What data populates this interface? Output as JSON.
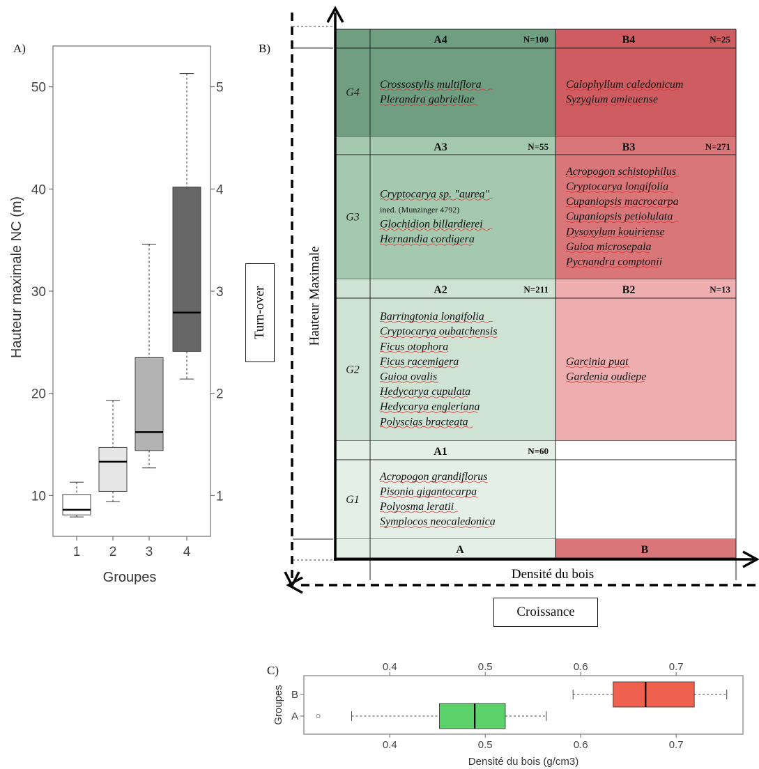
{
  "panels": {
    "a_letter": "A)",
    "b_letter": "B)",
    "c_letter": "C)"
  },
  "chart_data": [
    {
      "type": "boxplot",
      "panel": "A",
      "xlabel": "Groupes",
      "ylabel": "Hauteur maximale NC (m)",
      "categories": [
        "1",
        "2",
        "3",
        "4"
      ],
      "ylim": [
        6,
        54
      ],
      "yticks": [
        10,
        20,
        30,
        40,
        50
      ],
      "boxes": [
        {
          "group": "1",
          "whisker_low": 7.9,
          "q1": 8.1,
          "median": 8.6,
          "q3": 10.1,
          "whisker_high": 11.3,
          "fill": "#ffffff"
        },
        {
          "group": "2",
          "whisker_low": 9.4,
          "q1": 10.4,
          "median": 13.3,
          "q3": 14.7,
          "whisker_high": 19.3,
          "fill": "#e6e6e6"
        },
        {
          "group": "3",
          "whisker_low": 12.7,
          "q1": 14.4,
          "median": 16.2,
          "q3": 23.5,
          "whisker_high": 34.6,
          "fill": "#b3b3b3"
        },
        {
          "group": "4",
          "whisker_low": 21.4,
          "q1": 24.1,
          "median": 27.9,
          "q3": 40.2,
          "whisker_high": 51.3,
          "fill": "#666666"
        }
      ]
    },
    {
      "type": "table",
      "panel": "B",
      "x_axis_label": "Densité du bois",
      "y_axis_label": "Hauteur Maximale",
      "outer_x_label": "Croissance",
      "outer_y_label": "Turn-over",
      "columns": [
        "A",
        "B"
      ],
      "rows": [
        {
          "group": "G4",
          "cells": [
            {
              "id": "A4",
              "n": "N=100",
              "color": "#6f9f80",
              "species": [
                "Crossostylis multiflora",
                "Plerandra gabriellae"
              ]
            },
            {
              "id": "B4",
              "n": "N=25",
              "color": "#cf5c60",
              "species": [
                "Calophyllum caledonicum",
                "Syzygium amieuense"
              ]
            }
          ]
        },
        {
          "group": "G3",
          "cells": [
            {
              "id": "A3",
              "n": "N=55",
              "color": "#a4c9af",
              "species": [
                "Cryptocarya sp. \"aurea\"",
                "Glochidion billardierei",
                "Hernandia cordigera"
              ],
              "note": "ined. (Munzinger 4792)"
            },
            {
              "id": "B3",
              "n": "N=271",
              "color": "#d9767a",
              "species": [
                "Acropogon schistophilus",
                "Cryptocarya longifolia",
                "Cupaniopsis macrocarpa",
                "Cupaniopsis petiolulata",
                "Dysoxylum kouiriense",
                "Guioa microsepala",
                "Pycnandra comptonii"
              ]
            }
          ]
        },
        {
          "group": "G2",
          "cells": [
            {
              "id": "A2",
              "n": "N=211",
              "color": "#cfe3d5",
              "species": [
                "Barringtonia longifolia",
                "Cryptocarya oubatchensis",
                "Ficus otophora",
                "Ficus racemigera",
                "Guioa ovalis",
                "Hedycarya cupulata",
                "Hedycarya engleriana",
                "Polyscias bracteata"
              ]
            },
            {
              "id": "B2",
              "n": "N=13",
              "color": "#eeaeb0",
              "species": [
                "Garcinia puat",
                "Gardenia oudiepe"
              ]
            }
          ]
        },
        {
          "group": "G1",
          "cells": [
            {
              "id": "A1",
              "n": "N=60",
              "color": "#e4efe7",
              "species": [
                "Acropogon grandiflorus",
                "Pisonia gigantocarpa",
                "Polyosma leratii",
                "Symplocos neocaledonica"
              ]
            },
            {
              "id": "",
              "n": "",
              "color": "#ffffff",
              "species": []
            }
          ]
        }
      ],
      "column_header_colors": {
        "A": "#e4efe7",
        "B": "#d9767a"
      }
    },
    {
      "type": "boxplot",
      "panel": "C",
      "orientation": "horizontal",
      "xlabel": "Densité du bois (g/cm3)",
      "ylabel": "Groupes",
      "categories": [
        "A",
        "B"
      ],
      "xlim": [
        0.31,
        0.77
      ],
      "xticks": [
        0.4,
        0.5,
        0.6,
        0.7
      ],
      "boxes": [
        {
          "group": "A",
          "whisker_low": 0.36,
          "q1": 0.452,
          "median": 0.489,
          "q3": 0.521,
          "whisker_high": 0.564,
          "fill": "#5cd36a",
          "outliers": [
            0.325
          ]
        },
        {
          "group": "B",
          "whisker_low": 0.592,
          "q1": 0.634,
          "median": 0.668,
          "q3": 0.719,
          "whisker_high": 0.753,
          "fill": "#f0604f",
          "outliers": []
        }
      ]
    }
  ]
}
